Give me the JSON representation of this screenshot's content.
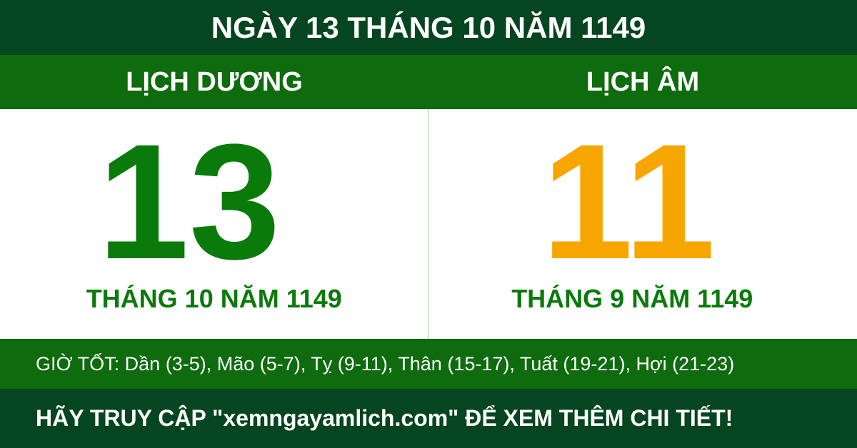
{
  "header": {
    "title": "NGÀY 13 THÁNG 10 NĂM 1149"
  },
  "solar": {
    "label": "LỊCH DƯƠNG",
    "day": "13",
    "month_year": "THÁNG 10 NĂM 1149"
  },
  "lunar": {
    "label": "LỊCH ÂM",
    "day": "11",
    "month_year": "THÁNG 9 NĂM 1149"
  },
  "good_hours": "GIỜ TỐT: Dần (3-5), Mão (5-7), Tỵ (9-11), Thân (15-17), Tuất (19-21), Hợi (21-23)",
  "footer": "HÃY TRUY CẬP \"xemngayamlich.com\" ĐỂ XEM THÊM CHI TIẾT!"
}
